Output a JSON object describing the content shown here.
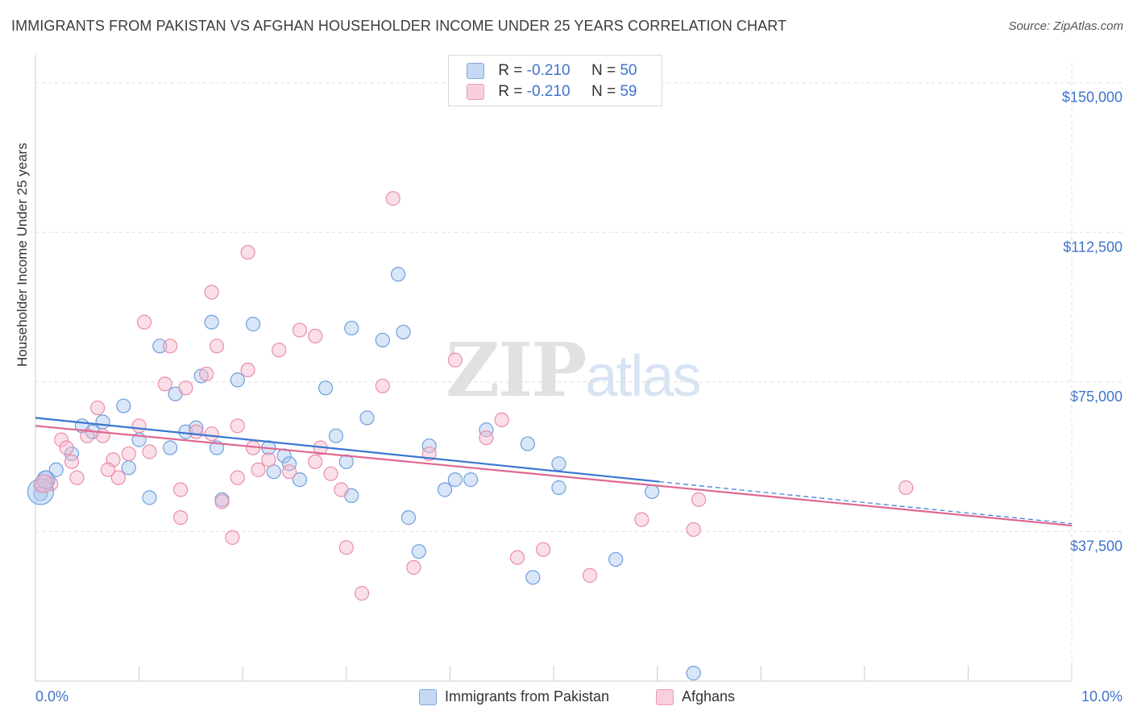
{
  "title": "IMMIGRANTS FROM PAKISTAN VS AFGHAN HOUSEHOLDER INCOME UNDER 25 YEARS CORRELATION CHART",
  "source": "Source: ZipAtlas.com",
  "watermark": {
    "zip": "ZIP",
    "atlas": "atlas"
  },
  "legend": {
    "rows": [
      {
        "r_label": "R =",
        "r_value": "-0.210",
        "n_label": "N =",
        "n_value": "50"
      },
      {
        "r_label": "R =",
        "r_value": "-0.210",
        "n_label": "N =",
        "n_value": "59"
      }
    ]
  },
  "colors": {
    "pakistan_fill": "#aac7ef",
    "pakistan_stroke": "#6f9fdc",
    "pakistan_line": "#3a76d2",
    "afghan_fill": "#f6b8cb",
    "afghan_stroke": "#e88eab",
    "afghan_line": "#e06890",
    "tick_text": "#3f74c9",
    "grid": "#dddddd"
  },
  "chart_data": {
    "type": "scatter",
    "title": "IMMIGRANTS FROM PAKISTAN VS AFGHAN HOUSEHOLDER INCOME UNDER 25 YEARS CORRELATION CHART",
    "xlabel": "",
    "ylabel": "Householder Income Under 25 years",
    "xlim": [
      0,
      10
    ],
    "ylim": [
      0,
      155000
    ],
    "x_tick_labels": [
      {
        "x": 0,
        "label": "0.0%"
      },
      {
        "x": 10,
        "label": "10.0%"
      }
    ],
    "y_ticks": [
      {
        "y": 37500,
        "label": "$37,500"
      },
      {
        "y": 75000,
        "label": "$75,000"
      },
      {
        "y": 112500,
        "label": "$112,500"
      },
      {
        "y": 150000,
        "label": "$150,000"
      }
    ],
    "grid": true,
    "legend_position": "top-center",
    "series": [
      {
        "name": "Immigrants from Pakistan",
        "points": [
          [
            0.05,
            47000
          ],
          [
            0.1,
            51000
          ],
          [
            0.2,
            53000
          ],
          [
            0.35,
            57000
          ],
          [
            0.45,
            64000
          ],
          [
            0.55,
            62500
          ],
          [
            0.65,
            65000
          ],
          [
            0.9,
            53500
          ],
          [
            0.85,
            69000
          ],
          [
            1.0,
            60500
          ],
          [
            1.1,
            46000
          ],
          [
            1.2,
            84000
          ],
          [
            1.3,
            58500
          ],
          [
            1.35,
            72000
          ],
          [
            1.45,
            62500
          ],
          [
            1.55,
            63500
          ],
          [
            1.6,
            76500
          ],
          [
            1.7,
            90000
          ],
          [
            1.75,
            58500
          ],
          [
            1.8,
            45500
          ],
          [
            1.95,
            75500
          ],
          [
            2.1,
            89500
          ],
          [
            2.25,
            58500
          ],
          [
            2.3,
            52500
          ],
          [
            2.4,
            56500
          ],
          [
            2.45,
            54500
          ],
          [
            2.55,
            50500
          ],
          [
            2.8,
            73500
          ],
          [
            2.9,
            61500
          ],
          [
            3.0,
            55000
          ],
          [
            3.05,
            46500
          ],
          [
            3.05,
            88500
          ],
          [
            3.2,
            66000
          ],
          [
            3.35,
            85500
          ],
          [
            3.5,
            102000
          ],
          [
            3.55,
            87500
          ],
          [
            3.6,
            41000
          ],
          [
            3.7,
            32500
          ],
          [
            3.8,
            59000
          ],
          [
            3.95,
            48000
          ],
          [
            4.05,
            50500
          ],
          [
            4.2,
            50500
          ],
          [
            4.35,
            63000
          ],
          [
            4.75,
            59500
          ],
          [
            5.05,
            54500
          ],
          [
            5.05,
            48500
          ],
          [
            5.6,
            30500
          ],
          [
            5.95,
            47500
          ],
          [
            6.35,
            2000
          ],
          [
            4.8,
            26000
          ]
        ]
      },
      {
        "name": "Afghans",
        "points": [
          [
            0.05,
            49000
          ],
          [
            0.15,
            49500
          ],
          [
            0.25,
            60500
          ],
          [
            0.3,
            58500
          ],
          [
            0.35,
            55000
          ],
          [
            0.4,
            51000
          ],
          [
            0.5,
            61500
          ],
          [
            0.6,
            68500
          ],
          [
            0.65,
            61500
          ],
          [
            0.75,
            55500
          ],
          [
            0.8,
            51000
          ],
          [
            0.9,
            57000
          ],
          [
            1.0,
            64000
          ],
          [
            1.05,
            90000
          ],
          [
            1.1,
            57500
          ],
          [
            1.25,
            74500
          ],
          [
            1.3,
            84000
          ],
          [
            1.4,
            48000
          ],
          [
            1.4,
            41000
          ],
          [
            1.45,
            73500
          ],
          [
            1.55,
            62500
          ],
          [
            1.65,
            77000
          ],
          [
            1.7,
            97500
          ],
          [
            1.75,
            84000
          ],
          [
            1.8,
            45000
          ],
          [
            1.95,
            64000
          ],
          [
            1.95,
            51000
          ],
          [
            2.05,
            78000
          ],
          [
            2.1,
            58500
          ],
          [
            2.15,
            53000
          ],
          [
            2.25,
            55500
          ],
          [
            2.35,
            83000
          ],
          [
            2.45,
            52500
          ],
          [
            2.55,
            88000
          ],
          [
            2.7,
            55000
          ],
          [
            2.75,
            58500
          ],
          [
            2.85,
            52000
          ],
          [
            2.95,
            48000
          ],
          [
            3.0,
            33500
          ],
          [
            3.15,
            22000
          ],
          [
            3.35,
            74000
          ],
          [
            3.45,
            121000
          ],
          [
            3.65,
            28500
          ],
          [
            3.8,
            57000
          ],
          [
            4.05,
            80500
          ],
          [
            4.35,
            61000
          ],
          [
            4.5,
            65500
          ],
          [
            4.65,
            31000
          ],
          [
            4.9,
            33000
          ],
          [
            5.35,
            26500
          ],
          [
            5.85,
            40500
          ],
          [
            6.35,
            38000
          ],
          [
            6.4,
            45500
          ],
          [
            8.4,
            48500
          ],
          [
            2.05,
            107500
          ],
          [
            2.7,
            86500
          ],
          [
            1.7,
            62000
          ],
          [
            0.7,
            53000
          ],
          [
            1.9,
            36000
          ]
        ]
      }
    ],
    "trend_lines": [
      {
        "name": "Immigrants from Pakistan",
        "x": [
          0,
          6.02
        ],
        "y": [
          66000,
          50000
        ],
        "dashed_to": [
          10.0,
          39500
        ]
      },
      {
        "name": "Afghans",
        "x": [
          0,
          10.0
        ],
        "y": [
          64000,
          39000
        ]
      }
    ],
    "legend_entries": [
      "Immigrants from Pakistan",
      "Afghans"
    ]
  }
}
